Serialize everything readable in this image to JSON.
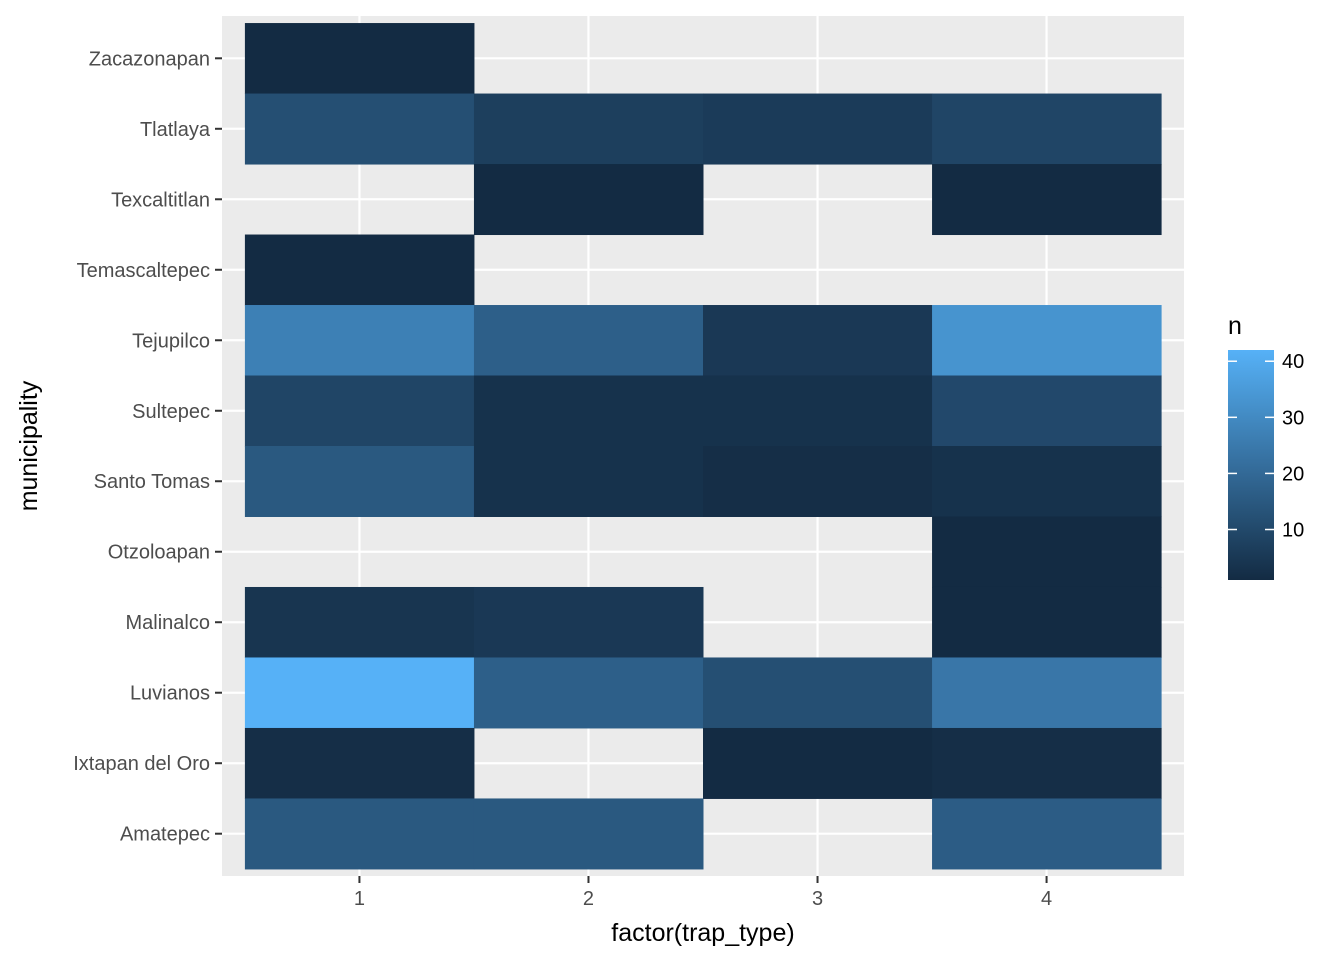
{
  "chart_data": {
    "type": "heatmap",
    "xlabel": "factor(trap_type)",
    "ylabel": "municipality",
    "x_categories": [
      "1",
      "2",
      "3",
      "4"
    ],
    "y_categories": [
      "Amatepec",
      "Ixtapan del Oro",
      "Luvianos",
      "Malinalco",
      "Otzoloapan",
      "Santo Tomas",
      "Sultepec",
      "Tejupilco",
      "Temascaltepec",
      "Texcaltitlan",
      "Tlatlaya",
      "Zacazonapan"
    ],
    "cells": [
      {
        "municipality": "Zacazonapan",
        "trap_type": "1",
        "n": 1
      },
      {
        "municipality": "Tlatlaya",
        "trap_type": "1",
        "n": 12
      },
      {
        "municipality": "Tlatlaya",
        "trap_type": "2",
        "n": 7
      },
      {
        "municipality": "Tlatlaya",
        "trap_type": "3",
        "n": 6
      },
      {
        "municipality": "Tlatlaya",
        "trap_type": "4",
        "n": 9
      },
      {
        "municipality": "Texcaltitlan",
        "trap_type": "2",
        "n": 1
      },
      {
        "municipality": "Texcaltitlan",
        "trap_type": "4",
        "n": 1
      },
      {
        "municipality": "Temascaltepec",
        "trap_type": "1",
        "n": 1
      },
      {
        "municipality": "Tejupilco",
        "trap_type": "1",
        "n": 27
      },
      {
        "municipality": "Tejupilco",
        "trap_type": "2",
        "n": 17
      },
      {
        "municipality": "Tejupilco",
        "trap_type": "3",
        "n": 5
      },
      {
        "municipality": "Tejupilco",
        "trap_type": "4",
        "n": 33
      },
      {
        "municipality": "Sultepec",
        "trap_type": "1",
        "n": 9
      },
      {
        "municipality": "Sultepec",
        "trap_type": "2",
        "n": 3
      },
      {
        "municipality": "Sultepec",
        "trap_type": "3",
        "n": 3
      },
      {
        "municipality": "Sultepec",
        "trap_type": "4",
        "n": 10
      },
      {
        "municipality": "Santo Tomas",
        "trap_type": "1",
        "n": 15
      },
      {
        "municipality": "Santo Tomas",
        "trap_type": "2",
        "n": 3
      },
      {
        "municipality": "Santo Tomas",
        "trap_type": "3",
        "n": 2
      },
      {
        "municipality": "Santo Tomas",
        "trap_type": "4",
        "n": 3
      },
      {
        "municipality": "Otzoloapan",
        "trap_type": "4",
        "n": 1
      },
      {
        "municipality": "Malinalco",
        "trap_type": "1",
        "n": 4
      },
      {
        "municipality": "Malinalco",
        "trap_type": "2",
        "n": 5
      },
      {
        "municipality": "Malinalco",
        "trap_type": "4",
        "n": 1
      },
      {
        "municipality": "Luvianos",
        "trap_type": "1",
        "n": 42
      },
      {
        "municipality": "Luvianos",
        "trap_type": "2",
        "n": 17
      },
      {
        "municipality": "Luvianos",
        "trap_type": "3",
        "n": 12
      },
      {
        "municipality": "Luvianos",
        "trap_type": "4",
        "n": 24
      },
      {
        "municipality": "Ixtapan del Oro",
        "trap_type": "1",
        "n": 2
      },
      {
        "municipality": "Ixtapan del Oro",
        "trap_type": "3",
        "n": 1
      },
      {
        "municipality": "Ixtapan del Oro",
        "trap_type": "4",
        "n": 2
      },
      {
        "municipality": "Amatepec",
        "trap_type": "1",
        "n": 15
      },
      {
        "municipality": "Amatepec",
        "trap_type": "2",
        "n": 15
      },
      {
        "municipality": "Amatepec",
        "trap_type": "4",
        "n": 16
      }
    ],
    "legend": {
      "title": "n",
      "breaks": [
        10,
        20,
        30,
        40
      ],
      "range": [
        1,
        42
      ],
      "low_color": "#132B43",
      "high_color": "#56B1F7",
      "placement": "right"
    },
    "colors": {
      "panel_background": "#EBEBEB",
      "grid": "#FFFFFF",
      "empty_cell": "#E5E5E5"
    },
    "grid": true
  }
}
